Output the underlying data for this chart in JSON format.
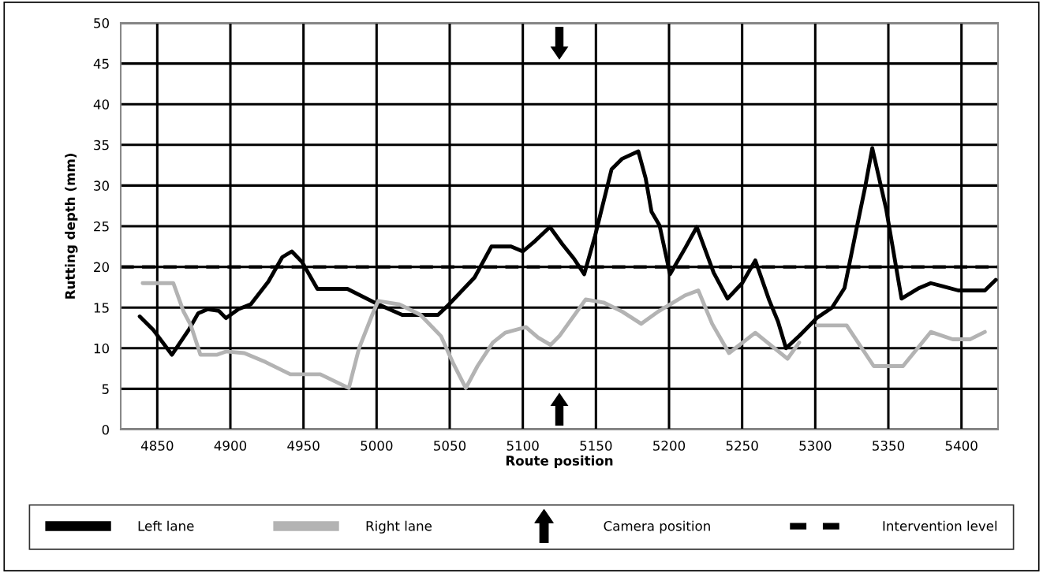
{
  "chart_data": {
    "type": "line",
    "xlabel": "Route position",
    "ylabel": "Rutting depth (mm)",
    "xlim": [
      4825,
      5425
    ],
    "xticks": [
      4850,
      4900,
      4950,
      5000,
      5050,
      5100,
      5150,
      5200,
      5250,
      5300,
      5350,
      5400
    ],
    "ylim": [
      0,
      50
    ],
    "yticks": [
      0,
      5,
      10,
      15,
      20,
      25,
      30,
      35,
      40,
      45,
      50
    ],
    "grid": true,
    "legend": "bottom",
    "line_style": "solid",
    "ref_lines": [
      {
        "axis": "y",
        "value": 20,
        "label": "Intervention level",
        "color": "#000000",
        "line_style": "dashed"
      }
    ],
    "series": [
      {
        "name": "Left lane",
        "color": "#000000",
        "x": [
          4838,
          4847.5,
          4860,
          4872,
          4878,
          4884.5,
          4892,
          4897,
          4905.5,
          4914,
          4926,
          4935.5,
          4942,
          4949,
          4959.5,
          4980,
          5001,
          5017.5,
          5042,
          5048.5,
          5067,
          5078.5,
          5092,
          5100,
          5108.5,
          5118.5,
          5127,
          5135,
          5142,
          5149.4,
          5154.5,
          5160.7,
          5168,
          5179,
          5184,
          5188,
          5193.5,
          5200.7,
          5211,
          5219,
          5230.5,
          5240,
          5250,
          5259,
          5268.5,
          5274.5,
          5280,
          5289,
          5301,
          5311.5,
          5320,
          5328,
          5334,
          5339,
          5348.5,
          5359,
          5371,
          5379,
          5387.5,
          5397.8,
          5416,
          5423.5
        ],
        "values": [
          13.9,
          12.2,
          9.2,
          12.4,
          14.3,
          14.8,
          14.6,
          13.7,
          14.8,
          15.4,
          18.2,
          21.2,
          21.9,
          20.6,
          17.3,
          17.3,
          15.4,
          14.1,
          14.1,
          15.2,
          18.7,
          22.5,
          22.5,
          21.9,
          23.2,
          24.9,
          22.8,
          21.0,
          19.1,
          23.8,
          27.5,
          32.0,
          33.3,
          34.2,
          30.9,
          26.8,
          25.1,
          19.1,
          22.3,
          24.9,
          19.3,
          16.1,
          18.0,
          20.8,
          15.9,
          13.3,
          10.0,
          11.5,
          13.7,
          15.0,
          17.4,
          24.5,
          29.7,
          34.6,
          27.1,
          16.1,
          17.4,
          18.0,
          17.6,
          17.1,
          17.1,
          18.4
        ]
      },
      {
        "name": "Right lane",
        "color": "#b3b3b3",
        "x": [
          4840,
          4861,
          4868,
          4873,
          4879.5,
          4891,
          4897,
          4909.5,
          4924,
          4941,
          4961.5,
          4981,
          4988,
          4997,
          5001,
          5015.5,
          5030,
          5044,
          5052.5,
          5061,
          5069,
          5079.5,
          5088,
          5102,
          5110.5,
          5119,
          5125,
          5143,
          5155.5,
          5168,
          5181,
          5192.5,
          5211,
          5220,
          5229.5,
          5241,
          5259,
          5281,
          5289,
          5295,
          5301,
          5321.5,
          5340,
          5360,
          5379,
          5394,
          5406,
          5416
        ],
        "values": [
          18.0,
          18.0,
          14.5,
          12.8,
          9.2,
          9.2,
          9.6,
          9.4,
          8.3,
          6.8,
          6.8,
          5.1,
          10.0,
          14.1,
          15.8,
          15.4,
          14.1,
          11.5,
          8.1,
          5.1,
          7.8,
          10.7,
          11.9,
          12.6,
          11.3,
          10.4,
          11.5,
          16.0,
          15.6,
          14.5,
          13.0,
          14.5,
          16.5,
          17.1,
          13.0,
          9.4,
          11.9,
          8.7,
          10.7,
          null,
          12.8,
          12.8,
          7.8,
          7.8,
          12.0,
          11.1,
          11.1,
          12.0
        ]
      },
      {
        "name": "Camera position",
        "type": "scatter",
        "color": "#000000",
        "x": [
          5125,
          5125
        ],
        "values": [
          47.5,
          2.5
        ]
      }
    ]
  }
}
